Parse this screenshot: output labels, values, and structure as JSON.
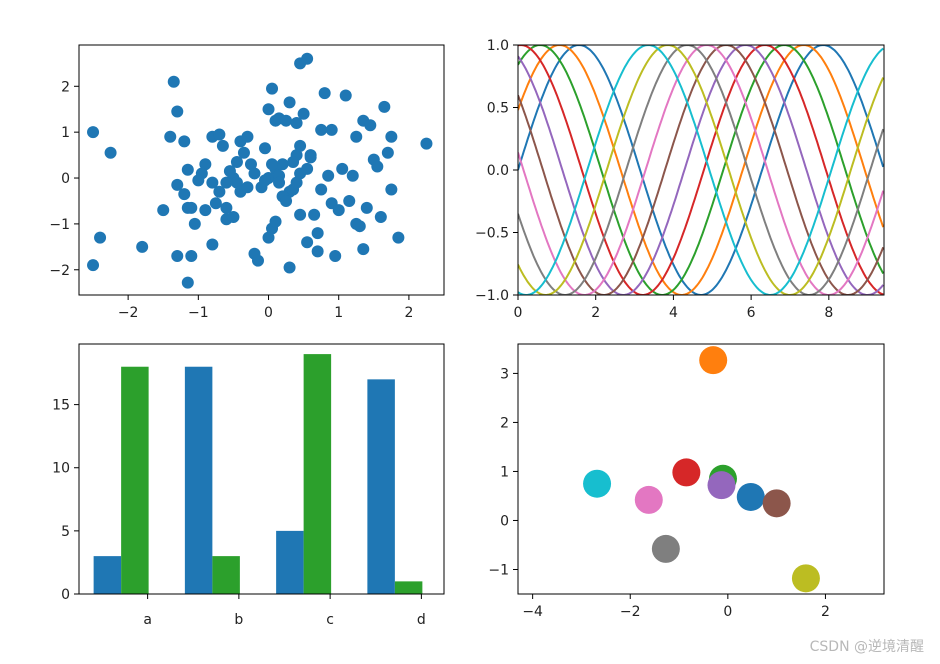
{
  "watermark": "CSDN @逆境清醒",
  "chart_data": [
    {
      "type": "scatter",
      "xlim": [
        -2.7,
        2.5
      ],
      "ylim": [
        -2.55,
        2.9
      ],
      "xticks": [
        -2,
        -1,
        0,
        1,
        2
      ],
      "xtick_labels": [
        "−2",
        "−1",
        "0",
        "1",
        "2"
      ],
      "yticks": [
        -2,
        -1,
        0,
        1,
        2
      ],
      "ytick_labels": [
        "−2",
        "−1",
        "0",
        "1",
        "2"
      ],
      "grid": false,
      "color": "#1f77b4",
      "points": [
        [
          -2.5,
          1.0
        ],
        [
          -2.25,
          0.55
        ],
        [
          -2.4,
          -1.3
        ],
        [
          -2.5,
          -1.9
        ],
        [
          -1.8,
          -1.5
        ],
        [
          -1.35,
          2.1
        ],
        [
          -1.3,
          1.45
        ],
        [
          -1.4,
          0.9
        ],
        [
          -1.2,
          0.8
        ],
        [
          -1.15,
          0.18
        ],
        [
          -1.2,
          -0.35
        ],
        [
          -1.1,
          -0.65
        ],
        [
          -1.15,
          -0.65
        ],
        [
          -1.05,
          -1.0
        ],
        [
          -1.3,
          -1.7
        ],
        [
          -1.5,
          -0.7
        ],
        [
          -1.1,
          -1.7
        ],
        [
          -1.15,
          -2.28
        ],
        [
          -0.8,
          0.9
        ],
        [
          -0.7,
          0.95
        ],
        [
          -0.65,
          0.7
        ],
        [
          -0.9,
          0.3
        ],
        [
          -0.95,
          0.1
        ],
        [
          -0.8,
          -0.1
        ],
        [
          -1.0,
          -0.05
        ],
        [
          -0.6,
          -0.9
        ],
        [
          -0.5,
          -0.85
        ],
        [
          -0.8,
          -1.45
        ],
        [
          -0.7,
          -0.3
        ],
        [
          -0.75,
          -0.55
        ],
        [
          -0.6,
          -0.65
        ],
        [
          -0.9,
          -0.7
        ],
        [
          -0.5,
          0.0
        ],
        [
          -0.45,
          -0.1
        ],
        [
          -0.4,
          -0.3
        ],
        [
          -0.3,
          -0.2
        ],
        [
          -0.2,
          0.1
        ],
        [
          -0.35,
          0.55
        ],
        [
          -0.4,
          0.8
        ],
        [
          -0.3,
          0.9
        ],
        [
          -0.45,
          0.35
        ],
        [
          -0.1,
          -0.2
        ],
        [
          -0.2,
          -1.65
        ],
        [
          -0.15,
          -1.8
        ],
        [
          0.0,
          -1.3
        ],
        [
          0.05,
          -1.1
        ],
        [
          0.1,
          -0.95
        ],
        [
          -0.05,
          0.65
        ],
        [
          0.0,
          1.5
        ],
        [
          0.05,
          1.95
        ],
        [
          0.1,
          1.25
        ],
        [
          0.15,
          1.3
        ],
        [
          0.25,
          1.25
        ],
        [
          0.3,
          1.65
        ],
        [
          0.4,
          1.2
        ],
        [
          0.45,
          2.5
        ],
        [
          0.55,
          2.6
        ],
        [
          0.5,
          1.4
        ],
        [
          0.3,
          -0.3
        ],
        [
          0.2,
          -0.4
        ],
        [
          0.35,
          -0.25
        ],
        [
          0.4,
          -0.1
        ],
        [
          0.45,
          0.1
        ],
        [
          0.55,
          0.2
        ],
        [
          0.6,
          0.5
        ],
        [
          0.45,
          0.7
        ],
        [
          0.4,
          0.5
        ],
        [
          0.2,
          0.3
        ],
        [
          0.1,
          0.2
        ],
        [
          0.0,
          0.0
        ],
        [
          -0.05,
          -0.05
        ],
        [
          0.05,
          0.3
        ],
        [
          0.15,
          0.05
        ],
        [
          0.3,
          -1.95
        ],
        [
          0.45,
          -0.8
        ],
        [
          0.55,
          -1.4
        ],
        [
          0.7,
          -1.2
        ],
        [
          0.65,
          -0.8
        ],
        [
          0.75,
          1.05
        ],
        [
          0.8,
          1.85
        ],
        [
          0.9,
          1.05
        ],
        [
          0.75,
          -0.25
        ],
        [
          0.9,
          -0.55
        ],
        [
          1.0,
          -0.7
        ],
        [
          0.95,
          -1.7
        ],
        [
          1.05,
          0.2
        ],
        [
          1.1,
          1.8
        ],
        [
          1.15,
          -0.5
        ],
        [
          1.2,
          0.05
        ],
        [
          1.25,
          0.9
        ],
        [
          1.3,
          -1.05
        ],
        [
          1.35,
          1.25
        ],
        [
          1.4,
          -0.65
        ],
        [
          1.35,
          -1.55
        ],
        [
          1.45,
          1.15
        ],
        [
          1.5,
          0.4
        ],
        [
          1.55,
          0.25
        ],
        [
          1.6,
          -0.85
        ],
        [
          1.65,
          1.55
        ],
        [
          1.7,
          0.55
        ],
        [
          1.75,
          0.9
        ],
        [
          1.75,
          -0.25
        ],
        [
          1.85,
          -1.3
        ],
        [
          1.25,
          -1.0
        ],
        [
          0.85,
          0.05
        ],
        [
          0.6,
          0.45
        ],
        [
          2.25,
          0.75
        ],
        [
          -0.55,
          0.15
        ],
        [
          -0.6,
          -0.1
        ],
        [
          0.25,
          -0.5
        ],
        [
          -0.25,
          0.3
        ],
        [
          0.7,
          -1.6
        ],
        [
          -1.3,
          -0.15
        ],
        [
          0.15,
          -0.1
        ],
        [
          0.35,
          0.35
        ]
      ]
    },
    {
      "type": "line",
      "xlim": [
        0,
        9.42
      ],
      "ylim": [
        -1.0,
        1.0
      ],
      "xticks": [
        0,
        2,
        4,
        6,
        8
      ],
      "xtick_labels": [
        "0",
        "2",
        "4",
        "6",
        "8"
      ],
      "yticks": [
        -1.0,
        -0.5,
        0.0,
        0.5,
        1.0
      ],
      "ytick_labels": [
        "−1.0",
        "−0.5",
        "0.0",
        "0.5",
        "1.0"
      ],
      "grid": false,
      "x_start": 0,
      "x_end": 9.42,
      "x_step": 0.05,
      "series": [
        {
          "formula": "sin(x + phase)",
          "phase": 0.0,
          "color": "#1f77b4"
        },
        {
          "formula": "sin(x + phase)",
          "phase": 0.5,
          "color": "#ff7f0e"
        },
        {
          "formula": "sin(x + phase)",
          "phase": 1.0,
          "color": "#2ca02c"
        },
        {
          "formula": "sin(x + phase)",
          "phase": 1.5,
          "color": "#d62728"
        },
        {
          "formula": "sin(x + phase)",
          "phase": 2.0,
          "color": "#9467bd"
        },
        {
          "formula": "sin(x + phase)",
          "phase": 2.5,
          "color": "#8c564b"
        },
        {
          "formula": "sin(x + phase)",
          "phase": 3.0,
          "color": "#e377c2"
        },
        {
          "formula": "sin(x + phase)",
          "phase": 3.5,
          "color": "#7f7f7f"
        },
        {
          "formula": "sin(x + phase)",
          "phase": 4.0,
          "color": "#bcbd22"
        },
        {
          "formula": "sin(x + phase)",
          "phase": 4.5,
          "color": "#17becf"
        }
      ]
    },
    {
      "type": "bar",
      "categories": [
        "a",
        "b",
        "c",
        "d"
      ],
      "ylim": [
        0,
        19.8
      ],
      "yticks": [
        0,
        5,
        10,
        15
      ],
      "ytick_labels": [
        "0",
        "5",
        "10",
        "15"
      ],
      "grid": false,
      "series": [
        {
          "values": [
            3,
            18,
            5,
            17
          ],
          "color": "#1f77b4"
        },
        {
          "values": [
            18,
            3,
            19,
            1
          ],
          "color": "#2ca02c"
        }
      ]
    },
    {
      "type": "scatter",
      "xlim": [
        -4.3,
        3.2
      ],
      "ylim": [
        -1.5,
        3.6
      ],
      "xticks": [
        -4,
        -2,
        0,
        2
      ],
      "xtick_labels": [
        "−4",
        "−2",
        "0",
        "2"
      ],
      "yticks": [
        -1,
        0,
        1,
        2,
        3
      ],
      "ytick_labels": [
        "−1",
        "0",
        "1",
        "2",
        "3"
      ],
      "grid": false,
      "points": [
        {
          "x": 0.47,
          "y": 0.48,
          "color": "#1f77b4"
        },
        {
          "x": -0.3,
          "y": 3.27,
          "color": "#ff7f0e"
        },
        {
          "x": -0.1,
          "y": 0.85,
          "color": "#2ca02c"
        },
        {
          "x": -0.85,
          "y": 0.98,
          "color": "#d62728"
        },
        {
          "x": -0.13,
          "y": 0.72,
          "color": "#9467bd"
        },
        {
          "x": 1.0,
          "y": 0.35,
          "color": "#8c564b"
        },
        {
          "x": -1.62,
          "y": 0.42,
          "color": "#e377c2"
        },
        {
          "x": -1.27,
          "y": -0.58,
          "color": "#7f7f7f"
        },
        {
          "x": 1.6,
          "y": -1.18,
          "color": "#bcbd22"
        },
        {
          "x": -2.68,
          "y": 0.75,
          "color": "#17becf"
        }
      ]
    }
  ]
}
